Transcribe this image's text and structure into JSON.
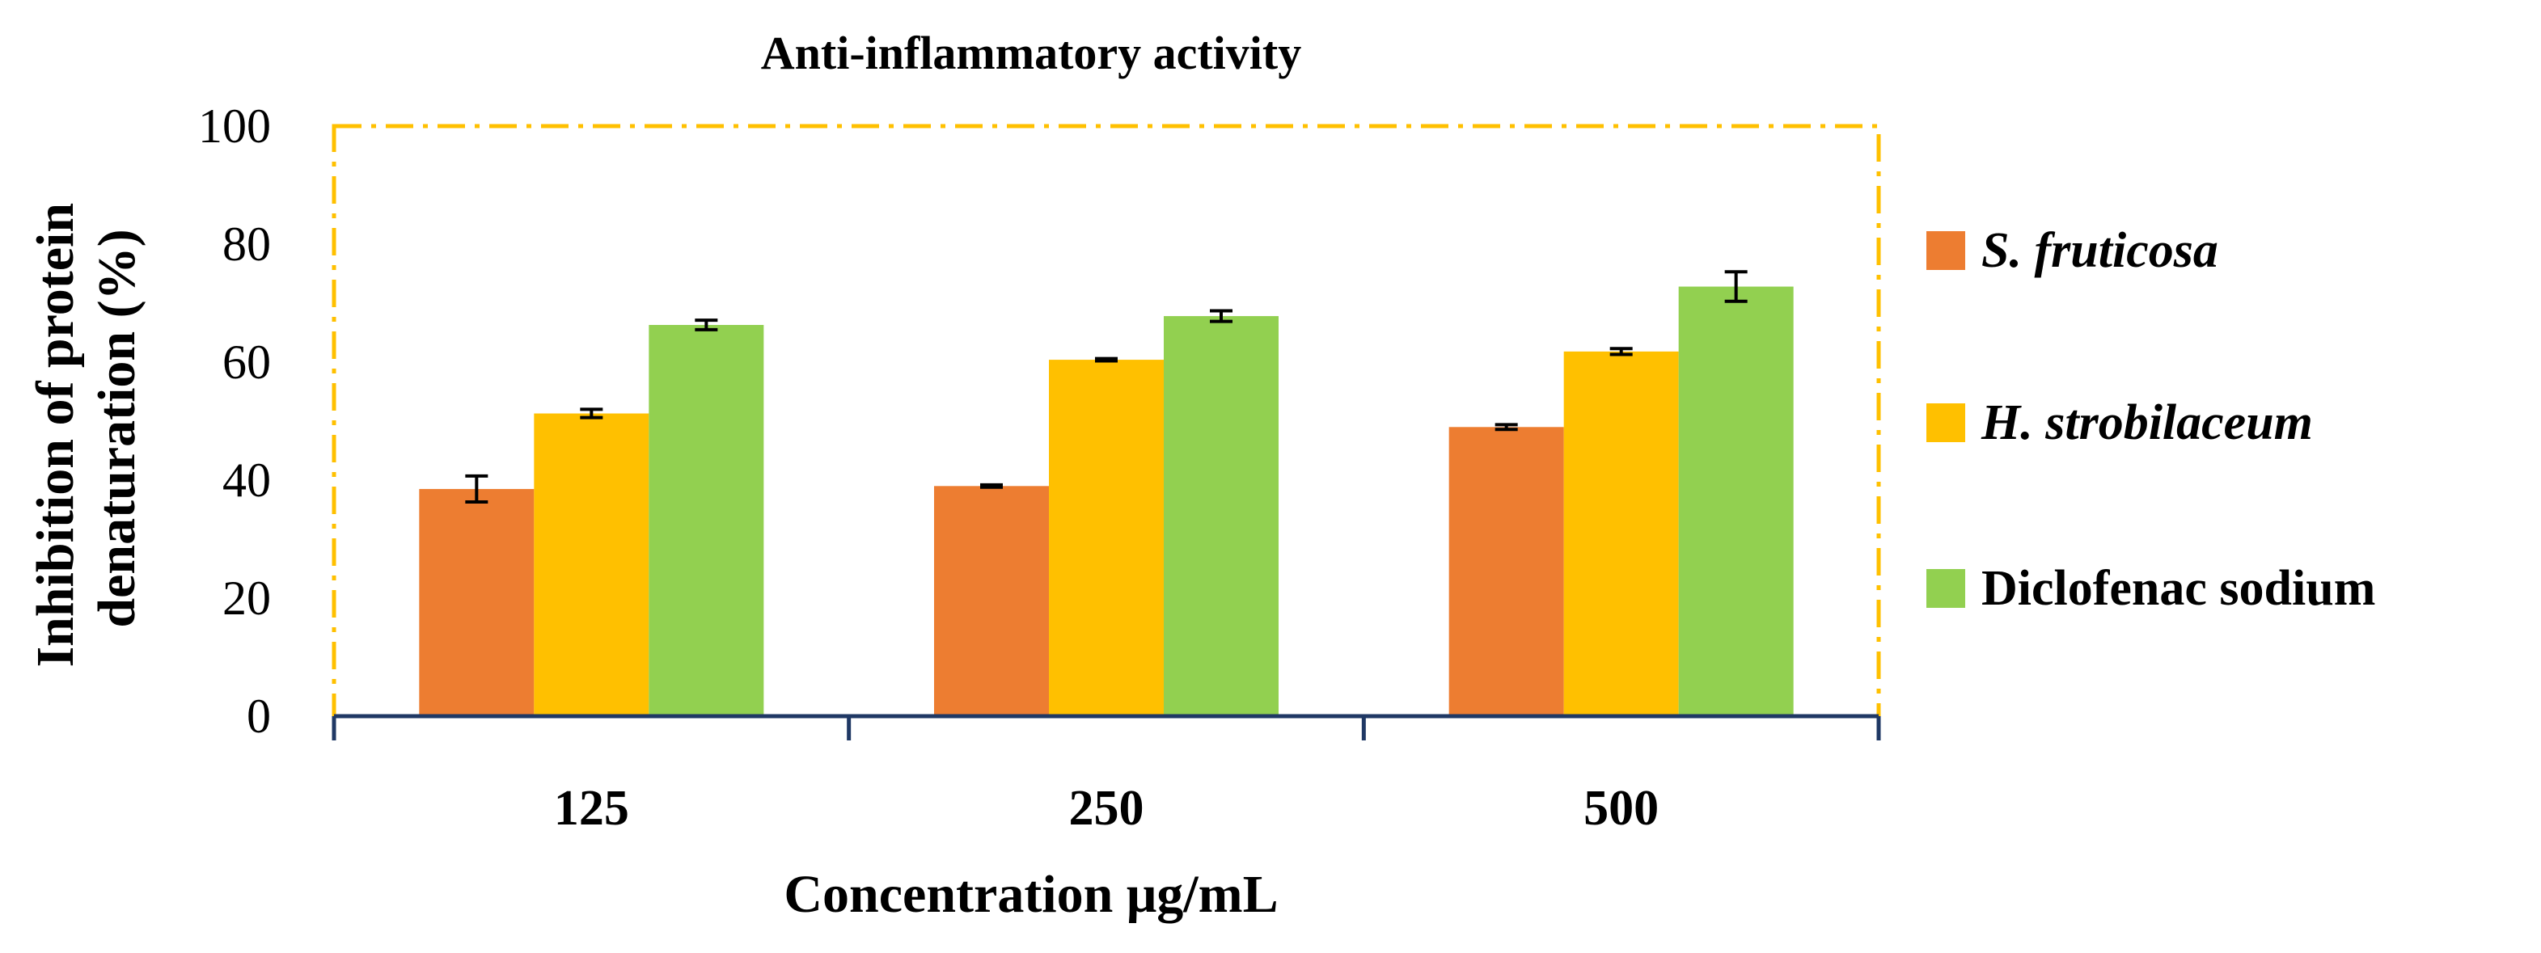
{
  "chart_data": {
    "type": "bar",
    "title": "Anti-inflammatory activity",
    "xlabel": "Concentration μg/mL",
    "ylabel_lines": [
      "Inhibition of protein",
      "denaturation (%)"
    ],
    "ylim": [
      0,
      100
    ],
    "yticks": [
      0,
      20,
      40,
      60,
      80,
      100
    ],
    "categories": [
      "125",
      "250",
      "500"
    ],
    "series": [
      {
        "name": "S. fruticosa",
        "italic": true,
        "color": "#ED7D31",
        "values": [
          38.5,
          39.0,
          49.0
        ],
        "errors": [
          2.2,
          0.2,
          0.4
        ]
      },
      {
        "name": "H. strobilaceum",
        "italic": true,
        "color": "#FFC000",
        "values": [
          51.3,
          60.4,
          61.8
        ],
        "errors": [
          0.7,
          0.2,
          0.5
        ]
      },
      {
        "name": "Diclofenac sodium",
        "italic": false,
        "color": "#92D050",
        "values": [
          66.3,
          67.8,
          72.8
        ],
        "errors": [
          0.8,
          0.9,
          2.5
        ]
      }
    ],
    "legend_position": "right",
    "plot_border_color": "#FFC000",
    "axis_color": "#1F3864",
    "grid": false
  }
}
